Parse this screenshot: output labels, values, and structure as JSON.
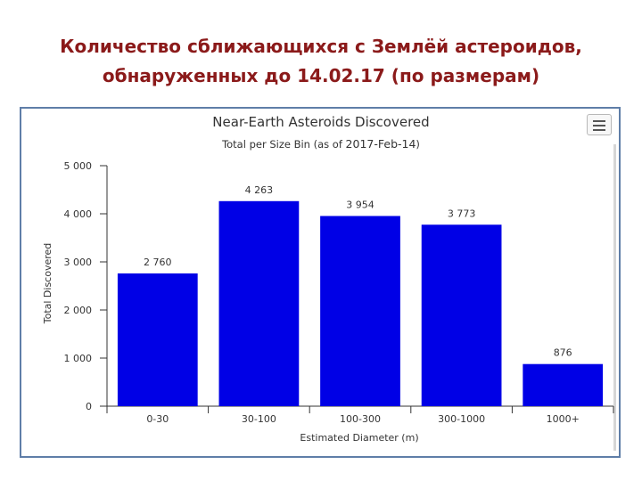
{
  "slide": {
    "title_line1": "Количество сближающихся с Землёй астероидов,",
    "title_line2": "обнаруженных до 14.02.17 (по размерам)"
  },
  "menu": {
    "icon": "hamburger-menu-icon"
  },
  "chart_data": {
    "type": "bar",
    "title": "Near-Earth Asteroids Discovered",
    "subtitle_prefix": "Total per Size Bin (as of ",
    "subtitle_date": "2017-Feb-14",
    "subtitle_suffix": ")",
    "xlabel": "Estimated Diameter (m)",
    "ylabel": "Total Discovered",
    "categories": [
      "0-30",
      "30-100",
      "100-300",
      "300-1000",
      "1000+"
    ],
    "values": [
      2760,
      4263,
      3954,
      3773,
      876
    ],
    "data_labels": [
      "2 760",
      "4 263",
      "3 954",
      "3 773",
      "876"
    ],
    "ylim": [
      0,
      5000
    ],
    "yticks": [
      0,
      1000,
      2000,
      3000,
      4000,
      5000
    ],
    "ytick_labels": [
      "0",
      "1 000",
      "2 000",
      "3 000",
      "4 000",
      "5 000"
    ],
    "bar_color": "#0000e6",
    "grid": false,
    "legend": "none"
  }
}
